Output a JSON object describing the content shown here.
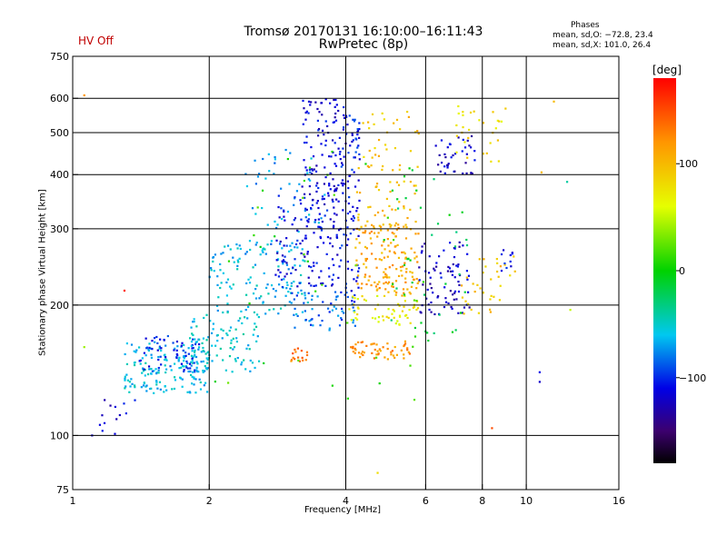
{
  "header": {
    "title_line1": "Tromsø 20170131 16:10:00–16:11:43",
    "title_line2": "RwPretec (8p)",
    "status": "HV Off",
    "phases_heading": "Phases",
    "phases_o": "mean, sd,O: −72.8, 23.4",
    "phases_x": "mean, sd,X: 101.0, 26.4"
  },
  "colorbar": {
    "label": "[deg]",
    "range": [
      -180,
      180
    ],
    "ticks": [
      {
        "value": 100,
        "label": "100"
      },
      {
        "value": 0,
        "label": "0"
      },
      {
        "value": -100,
        "label": "−100"
      }
    ]
  },
  "colors": {
    "grid": "#000000",
    "status": "#c00000"
  },
  "chart_data": {
    "type": "scatter",
    "xlabel": "Frequency [MHz]",
    "ylabel": "Stationary phase Virtual Height [km]",
    "xscale": "log",
    "yscale": "log",
    "xlim": [
      1,
      16
    ],
    "ylim": [
      75,
      750
    ],
    "x_ticks": [
      {
        "value": 1,
        "label": "1"
      },
      {
        "value": 2,
        "label": "2"
      },
      {
        "value": 4,
        "label": "4"
      },
      {
        "value": 6,
        "label": "6"
      },
      {
        "value": 8,
        "label": "8"
      },
      {
        "value": 10,
        "label": "10"
      },
      {
        "value": 16,
        "label": "16"
      }
    ],
    "y_ticks": [
      {
        "value": 75,
        "label": "75"
      },
      {
        "value": 100,
        "label": "100"
      },
      {
        "value": 200,
        "label": "200"
      },
      {
        "value": 300,
        "label": "300"
      },
      {
        "value": 400,
        "label": "400"
      },
      {
        "value": 500,
        "label": "500"
      },
      {
        "value": 600,
        "label": "600"
      },
      {
        "value": 750,
        "label": "750"
      }
    ],
    "x_gridlines": [
      2,
      4,
      6,
      8,
      10
    ],
    "y_gridlines": [
      100,
      200,
      300,
      400,
      500,
      600
    ],
    "color_by": "phase [deg]",
    "clusters": [
      {
        "x_range": [
          1.3,
          2.0
        ],
        "y_range": [
          125,
          165
        ],
        "phase": -60,
        "n": 170
      },
      {
        "x_range": [
          1.4,
          1.9
        ],
        "y_range": [
          140,
          170
        ],
        "phase": -105,
        "n": 60
      },
      {
        "x_range": [
          1.1,
          1.4
        ],
        "y_range": [
          100,
          125
        ],
        "phase": -115,
        "n": 14
      },
      {
        "x_range": [
          1.8,
          2.6
        ],
        "y_range": [
          140,
          190
        ],
        "phase": -55,
        "n": 90
      },
      {
        "x_range": [
          2.0,
          3.3
        ],
        "y_range": [
          190,
          280
        ],
        "phase": -60,
        "n": 130
      },
      {
        "x_range": [
          2.4,
          3.6
        ],
        "y_range": [
          260,
          460
        ],
        "phase": -70,
        "n": 55
      },
      {
        "x_range": [
          2.8,
          3.9
        ],
        "y_range": [
          220,
          360
        ],
        "phase": -110,
        "n": 140
      },
      {
        "x_range": [
          3.2,
          4.0
        ],
        "y_range": [
          360,
          600
        ],
        "phase": -115,
        "n": 100
      },
      {
        "x_range": [
          3.0,
          4.2
        ],
        "y_range": [
          175,
          215
        ],
        "phase": -85,
        "n": 60
      },
      {
        "x_range": [
          3.9,
          4.3
        ],
        "y_range": [
          200,
          560
        ],
        "phase": -105,
        "n": 90
      },
      {
        "x_range": [
          4.2,
          5.8
        ],
        "y_range": [
          210,
          310
        ],
        "phase": 110,
        "n": 150
      },
      {
        "x_range": [
          4.1,
          5.6
        ],
        "y_range": [
          150,
          165
        ],
        "phase": 120,
        "n": 55
      },
      {
        "x_range": [
          3.0,
          3.3
        ],
        "y_range": [
          148,
          160
        ],
        "phase": 130,
        "n": 16
      },
      {
        "x_range": [
          4.0,
          5.8
        ],
        "y_range": [
          180,
          210
        ],
        "phase": 70,
        "n": 55
      },
      {
        "x_range": [
          4.2,
          5.8
        ],
        "y_range": [
          300,
          560
        ],
        "phase": 95,
        "n": 75
      },
      {
        "x_range": [
          5.8,
          7.5
        ],
        "y_range": [
          190,
          280
        ],
        "phase": -120,
        "n": 80
      },
      {
        "x_range": [
          6.3,
          7.7
        ],
        "y_range": [
          400,
          500
        ],
        "phase": -120,
        "n": 40
      },
      {
        "x_range": [
          7.0,
          9.0
        ],
        "y_range": [
          420,
          580
        ],
        "phase": 80,
        "n": 30
      },
      {
        "x_range": [
          7.2,
          9.5
        ],
        "y_range": [
          190,
          260
        ],
        "phase": 95,
        "n": 35
      },
      {
        "x_range": [
          8.8,
          9.4
        ],
        "y_range": [
          240,
          270
        ],
        "phase": -110,
        "n": 10
      },
      {
        "x_range": [
          5.0,
          7.5
        ],
        "y_range": [
          160,
          420
        ],
        "phase": -15,
        "n": 40
      },
      {
        "x_range": [
          2.0,
          6.0
        ],
        "y_range": [
          120,
          500
        ],
        "phase": 10,
        "n": 40
      }
    ],
    "isolated_points": [
      {
        "x": 1.06,
        "y": 610,
        "phase": 120
      },
      {
        "x": 1.3,
        "y": 216,
        "phase": 170
      },
      {
        "x": 1.06,
        "y": 160,
        "phase": 40
      },
      {
        "x": 8.4,
        "y": 104,
        "phase": 150
      },
      {
        "x": 10.7,
        "y": 140,
        "phase": -110
      },
      {
        "x": 10.7,
        "y": 133,
        "phase": -120
      },
      {
        "x": 11.5,
        "y": 590,
        "phase": 100
      },
      {
        "x": 10.8,
        "y": 405,
        "phase": 100
      },
      {
        "x": 4.7,
        "y": 82,
        "phase": 80
      },
      {
        "x": 12.5,
        "y": 195,
        "phase": 50
      },
      {
        "x": 12.3,
        "y": 385,
        "phase": -40
      }
    ]
  }
}
